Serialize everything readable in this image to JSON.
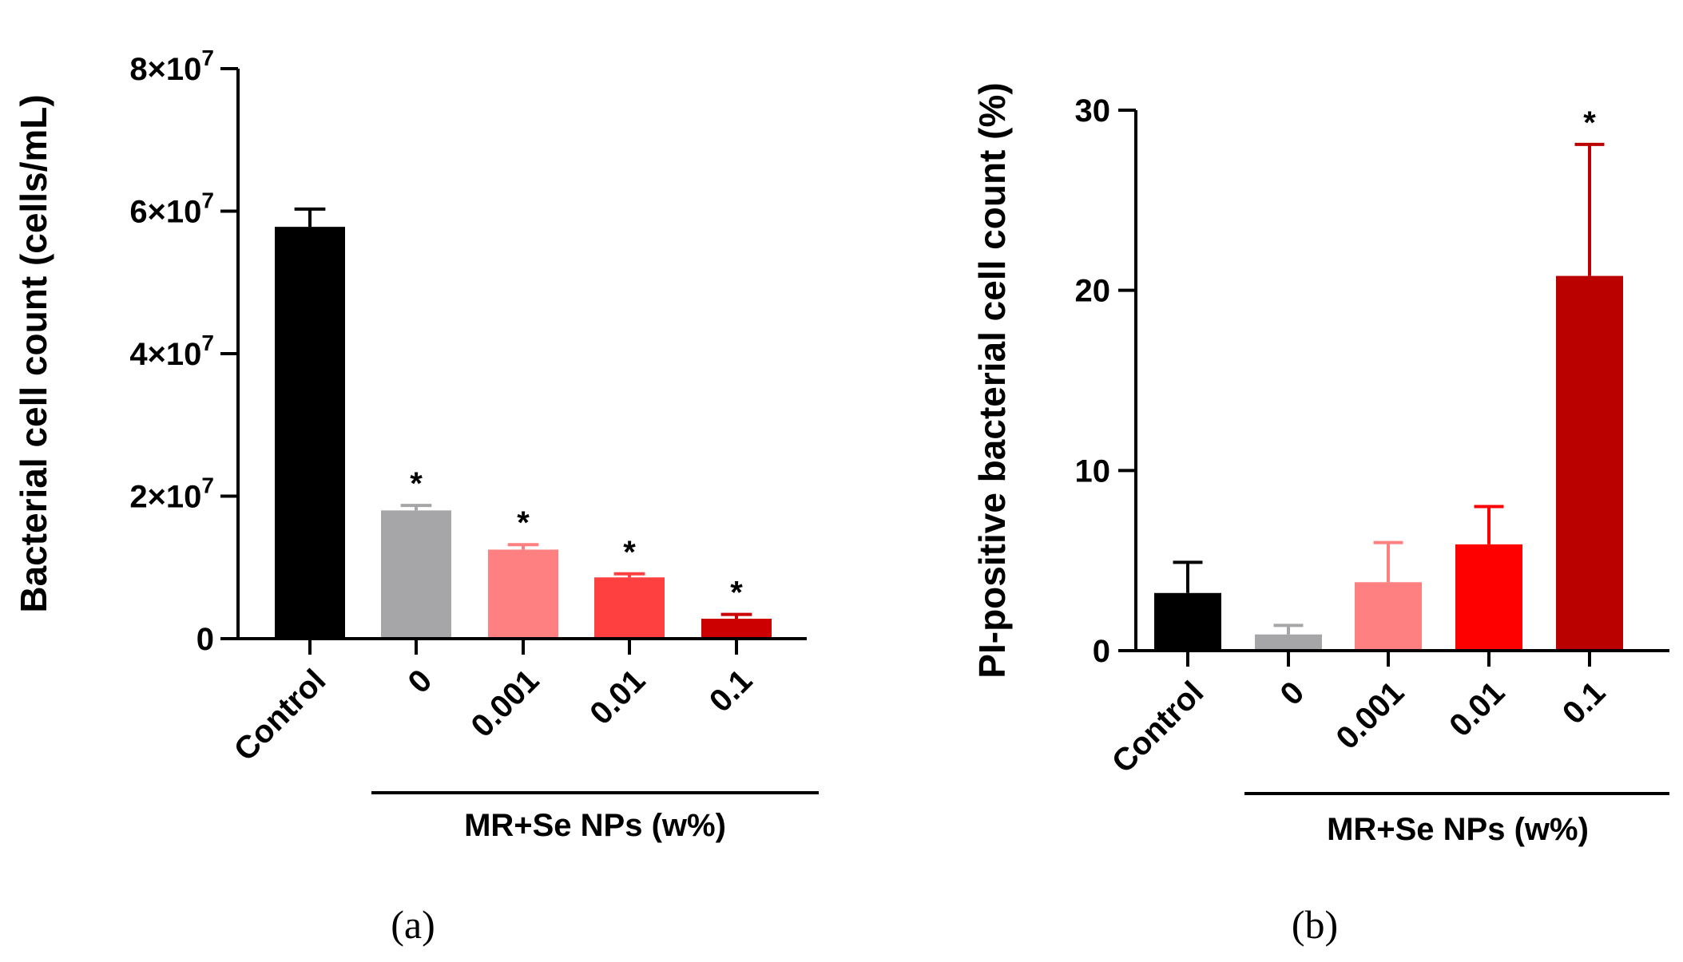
{
  "chart_data": [
    {
      "panel": "a",
      "type": "bar",
      "title": "",
      "ylabel": "Bacterial cell count (cells/mL)",
      "xlabel": "MR+Se NPs (w%)",
      "categories": [
        "Control",
        "0",
        "0.001",
        "0.01",
        "0.1"
      ],
      "values": [
        57800000,
        18000000,
        12500000,
        8600000,
        2800000
      ],
      "errors": [
        2500000,
        700000,
        700000,
        500000,
        600000
      ],
      "colors": [
        "#000000",
        "#a6a6a8",
        "#ff8080",
        "#ff4040",
        "#cc0000"
      ],
      "significance": [
        "",
        "*",
        "*",
        "*",
        "*"
      ],
      "ylim": [
        0,
        80000000
      ],
      "yticks": [
        0,
        20000000,
        40000000,
        60000000,
        80000000
      ],
      "ytick_labels": [
        {
          "base": "0",
          "exp": ""
        },
        {
          "base": "2×10",
          "exp": "7"
        },
        {
          "base": "4×10",
          "exp": "7"
        },
        {
          "base": "6×10",
          "exp": "7"
        },
        {
          "base": "8×10",
          "exp": "7"
        }
      ],
      "group_label": "MR+Se NPs (w%)",
      "caption": "(a)"
    },
    {
      "panel": "b",
      "type": "bar",
      "title": "",
      "ylabel": "PI-positive bacterial cell count (%)",
      "xlabel": "MR+Se NPs (w%)",
      "categories": [
        "Control",
        "0",
        "0.001",
        "0.01",
        "0.1"
      ],
      "values": [
        3.2,
        0.9,
        3.8,
        5.9,
        20.8
      ],
      "errors": [
        1.7,
        0.5,
        2.2,
        2.1,
        7.3
      ],
      "colors": [
        "#000000",
        "#a6a6a8",
        "#ff8080",
        "#ff0000",
        "#bb0000"
      ],
      "significance": [
        "",
        "",
        "",
        "",
        "*"
      ],
      "ylim": [
        0,
        30
      ],
      "yticks": [
        0,
        10,
        20,
        30
      ],
      "ytick_labels": [
        {
          "base": "0",
          "exp": ""
        },
        {
          "base": "10",
          "exp": ""
        },
        {
          "base": "20",
          "exp": ""
        },
        {
          "base": "30",
          "exp": ""
        }
      ],
      "group_label": "MR+Se NPs (w%)",
      "caption": "(b)"
    }
  ]
}
